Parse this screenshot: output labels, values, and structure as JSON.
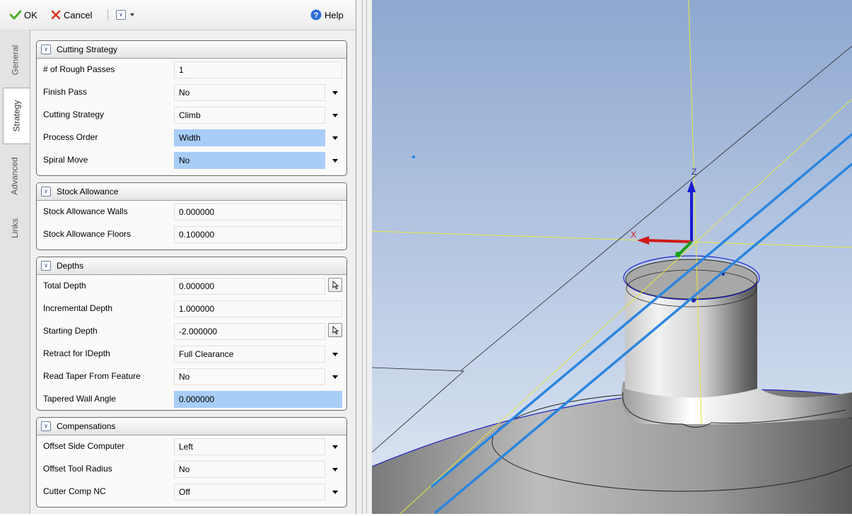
{
  "toolbar": {
    "ok_label": "OK",
    "cancel_label": "Cancel",
    "help_label": "Help"
  },
  "vertical_tabs": [
    {
      "label": "General"
    },
    {
      "label": "Strategy"
    },
    {
      "label": "Advanced"
    },
    {
      "label": "Links"
    }
  ],
  "active_tab": "Strategy",
  "groups": {
    "cutting_strategy": {
      "title": "Cutting Strategy",
      "rows": [
        {
          "label": "# of Rough Passes",
          "value": "1"
        },
        {
          "label": "Finish Pass",
          "value": "No"
        },
        {
          "label": "Cutting Strategy",
          "value": "Climb"
        },
        {
          "label": "Process Order",
          "value": "Width"
        },
        {
          "label": "Spiral Move",
          "value": "No"
        }
      ]
    },
    "stock_allowance": {
      "title": "Stock Allowance",
      "rows": [
        {
          "label": "Stock Allowance Walls",
          "value": "0.000000"
        },
        {
          "label": "Stock Allowance Floors",
          "value": "0.100000"
        }
      ]
    },
    "depths": {
      "title": "Depths",
      "rows": [
        {
          "label": "Total Depth",
          "value": "0.000000"
        },
        {
          "label": "Incremental Depth",
          "value": "1.000000"
        },
        {
          "label": "Starting Depth",
          "value": "-2.000000"
        },
        {
          "label": "Retract for IDepth",
          "value": "Full Clearance"
        },
        {
          "label": "Read Taper From Feature",
          "value": "No"
        },
        {
          "label": "Tapered Wall Angle",
          "value": "0.000000"
        }
      ]
    },
    "compensations": {
      "title": "Compensations",
      "rows": [
        {
          "label": "Offset Side Computer",
          "value": "Left"
        },
        {
          "label": "Offset Tool Radius",
          "value": "No"
        },
        {
          "label": "Cutter Comp NC",
          "value": "Off"
        }
      ]
    }
  },
  "viewport": {
    "axis_labels": {
      "z": "Z",
      "x": "X"
    },
    "colors": {
      "background_top": "#8ea8d0",
      "background_bottom": "#dfe7f4",
      "axis_yellow": "#e8e840",
      "toolpath_blue": "#2a86e0",
      "highlight": "#a8cdf7"
    }
  }
}
